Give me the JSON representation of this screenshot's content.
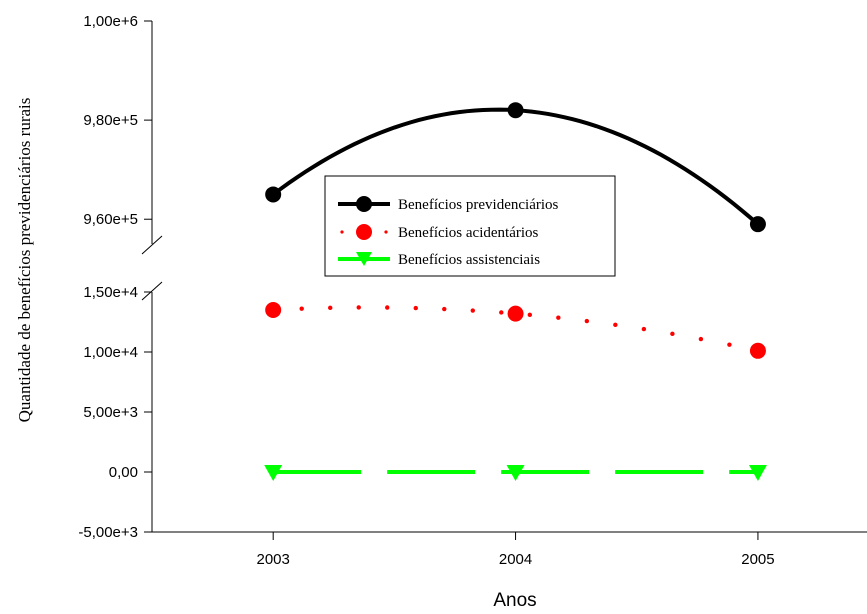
{
  "chart_data": {
    "type": "line",
    "xlabel": "Anos",
    "ylabel": "Quantidade de benefícios previdenciários rurais",
    "x": [
      2003,
      2004,
      2005
    ],
    "x_tick_labels": [
      "2003",
      "2004",
      "2005"
    ],
    "y_axis_break": true,
    "y_upper_segment": {
      "range": [
        955000,
        1000000
      ],
      "tick_values": [
        960000,
        980000,
        1000000
      ],
      "tick_labels": [
        "9,60e+5",
        "9,80e+5",
        "1,00e+6"
      ]
    },
    "y_lower_segment": {
      "range": [
        -5000,
        15000
      ],
      "tick_values": [
        -5000,
        0,
        5000,
        10000,
        15000
      ],
      "tick_labels": [
        "-5,00e+3",
        "0,00",
        "5,00e+3",
        "1,00e+4",
        "1,50e+4"
      ]
    },
    "series": [
      {
        "name": "Benefícios previdenciários",
        "values": [
          965000,
          982000,
          959000
        ],
        "color": "#000000",
        "line_style": "solid",
        "marker": "circle"
      },
      {
        "name": "Benefícios acidentários",
        "values": [
          13500,
          13200,
          10100
        ],
        "color": "#ff0000",
        "line_style": "dotted",
        "marker": "circle"
      },
      {
        "name": "Benefícios assistenciais",
        "values": [
          0,
          0,
          0
        ],
        "color": "#00ff00",
        "line_style": "dashed",
        "marker": "triangle-down"
      }
    ],
    "legend_position": "center",
    "grid": false
  }
}
